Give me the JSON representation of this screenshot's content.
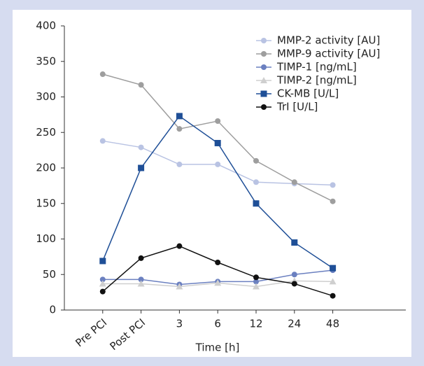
{
  "chart_data": {
    "type": "line",
    "x_label": "Time [h]",
    "categories": [
      "Pre PCI",
      "Post PCI",
      "3",
      "6",
      "12",
      "24",
      "48"
    ],
    "ylim": [
      0,
      400
    ],
    "yticks": [
      0,
      50,
      100,
      150,
      200,
      250,
      300,
      350,
      400
    ],
    "legend": "upper-right",
    "series": [
      {
        "name": "MMP-2 activity [AU]",
        "color": "#b9c3e3",
        "marker": "circle",
        "values": [
          238,
          229,
          205,
          205,
          180,
          178,
          176
        ]
      },
      {
        "name": "MMP-9 activity [AU]",
        "color": "#9e9e9e",
        "marker": "circle",
        "values": [
          332,
          317,
          255,
          266,
          210,
          180,
          153
        ]
      },
      {
        "name": "TIMP-1 [ng/mL]",
        "color": "#6b80c0",
        "marker": "circle",
        "values": [
          43,
          43,
          36,
          40,
          40,
          50,
          56
        ]
      },
      {
        "name": "TIMP-2 [ng/mL]",
        "color": "#cfcfcf",
        "marker": "triangle",
        "values": [
          37,
          37,
          33,
          38,
          33,
          41,
          40
        ]
      },
      {
        "name": "CK-MB [U/L]",
        "color": "#1f4f97",
        "marker": "square",
        "values": [
          69,
          200,
          273,
          235,
          150,
          95,
          59
        ]
      },
      {
        "name": "TrI [U/L]",
        "color": "#111111",
        "marker": "circle",
        "values": [
          26,
          73,
          90,
          67,
          46,
          37,
          20
        ]
      }
    ]
  }
}
